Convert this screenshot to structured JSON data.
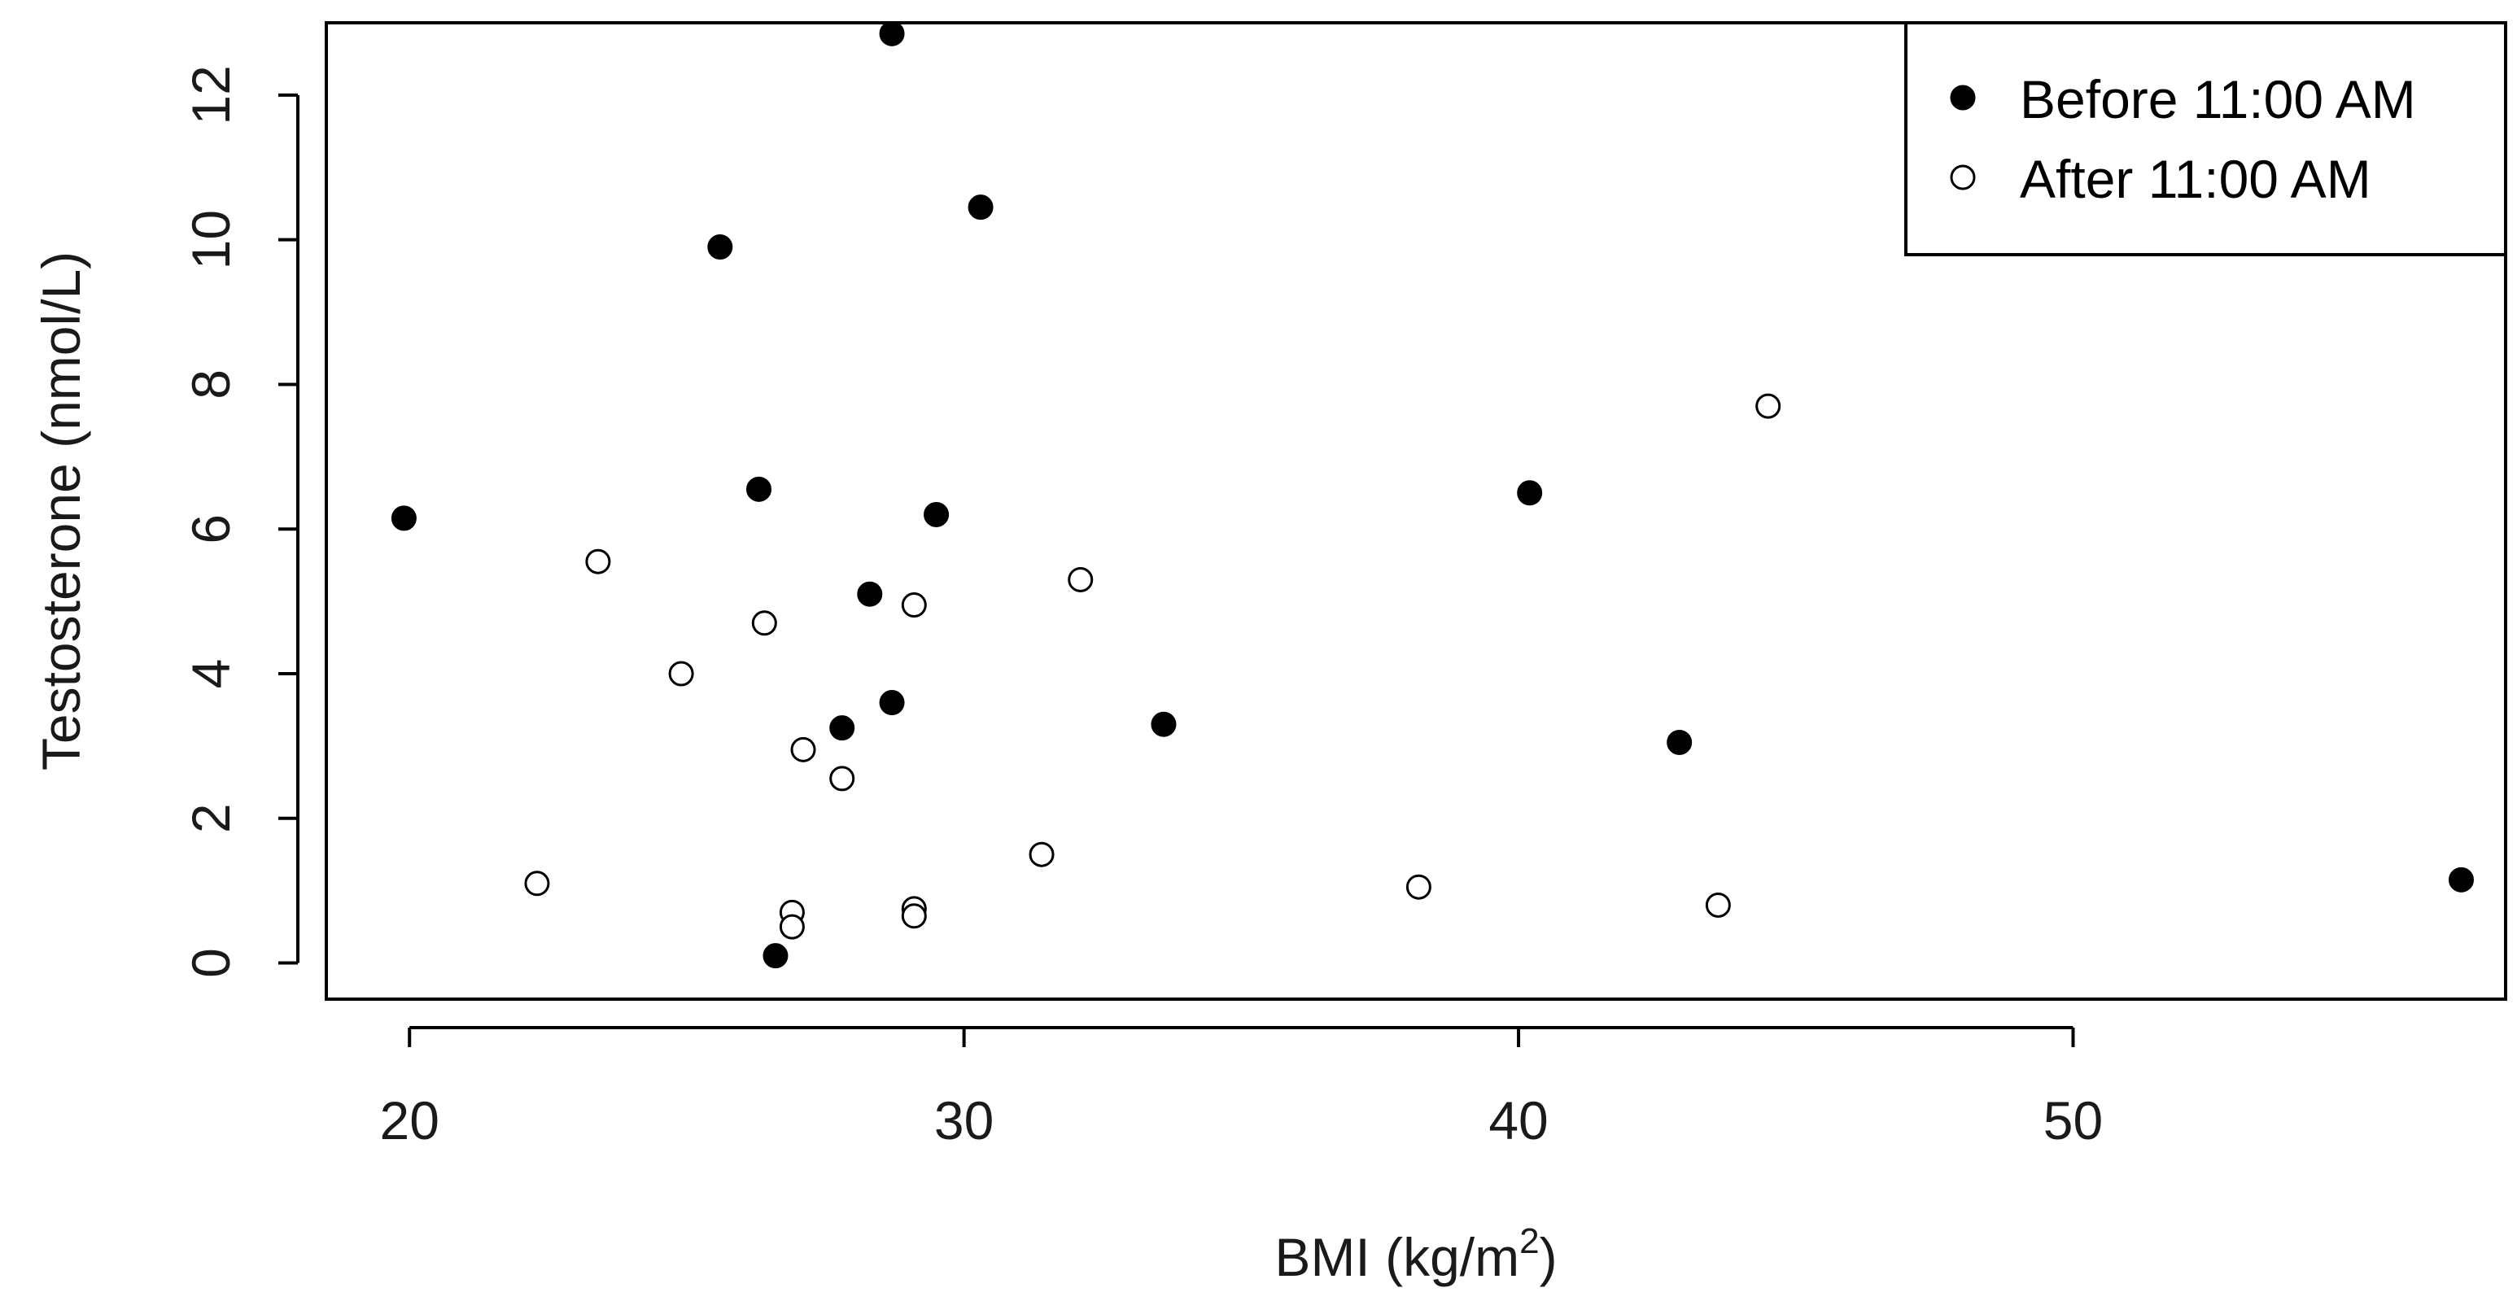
{
  "chart_data": {
    "type": "scatter",
    "title": "",
    "xlabel": "BMI (kg/m",
    "xlabel_sup": "2",
    "xlabel_close": ")",
    "ylabel": "Testosterone (nmol/L)",
    "xlim": [
      18.5,
      57.8
    ],
    "ylim": [
      -0.5,
      13.0
    ],
    "xticks": [
      20,
      30,
      40,
      50
    ],
    "yticks": [
      0,
      2,
      4,
      6,
      8,
      10,
      12
    ],
    "grid": false,
    "legend_position": "top-right",
    "series": [
      {
        "name": "Before 11:00 AM",
        "marker": "filled-circle",
        "color": "#000000",
        "points": [
          {
            "x": 19.9,
            "y": 6.15
          },
          {
            "x": 25.6,
            "y": 9.9
          },
          {
            "x": 26.3,
            "y": 6.55
          },
          {
            "x": 26.6,
            "y": 0.1
          },
          {
            "x": 27.8,
            "y": 3.25
          },
          {
            "x": 28.3,
            "y": 5.1
          },
          {
            "x": 28.7,
            "y": 12.85
          },
          {
            "x": 28.7,
            "y": 3.6
          },
          {
            "x": 29.5,
            "y": 6.2
          },
          {
            "x": 30.3,
            "y": 10.45
          },
          {
            "x": 33.6,
            "y": 3.3
          },
          {
            "x": 40.2,
            "y": 6.5
          },
          {
            "x": 42.9,
            "y": 3.05
          },
          {
            "x": 57.0,
            "y": 1.15
          }
        ]
      },
      {
        "name": "After 11:00 AM",
        "marker": "open-circle",
        "color": "#000000",
        "points": [
          {
            "x": 22.3,
            "y": 1.1
          },
          {
            "x": 23.4,
            "y": 5.55
          },
          {
            "x": 24.9,
            "y": 4.0
          },
          {
            "x": 26.4,
            "y": 4.7
          },
          {
            "x": 26.9,
            "y": 0.7
          },
          {
            "x": 26.9,
            "y": 0.5
          },
          {
            "x": 27.1,
            "y": 2.95
          },
          {
            "x": 27.8,
            "y": 2.55
          },
          {
            "x": 29.1,
            "y": 4.95
          },
          {
            "x": 29.1,
            "y": 0.75
          },
          {
            "x": 29.1,
            "y": 0.65
          },
          {
            "x": 31.4,
            "y": 1.5
          },
          {
            "x": 32.1,
            "y": 5.3
          },
          {
            "x": 38.2,
            "y": 1.05
          },
          {
            "x": 43.6,
            "y": 0.8
          },
          {
            "x": 44.5,
            "y": 7.7
          }
        ]
      }
    ]
  }
}
